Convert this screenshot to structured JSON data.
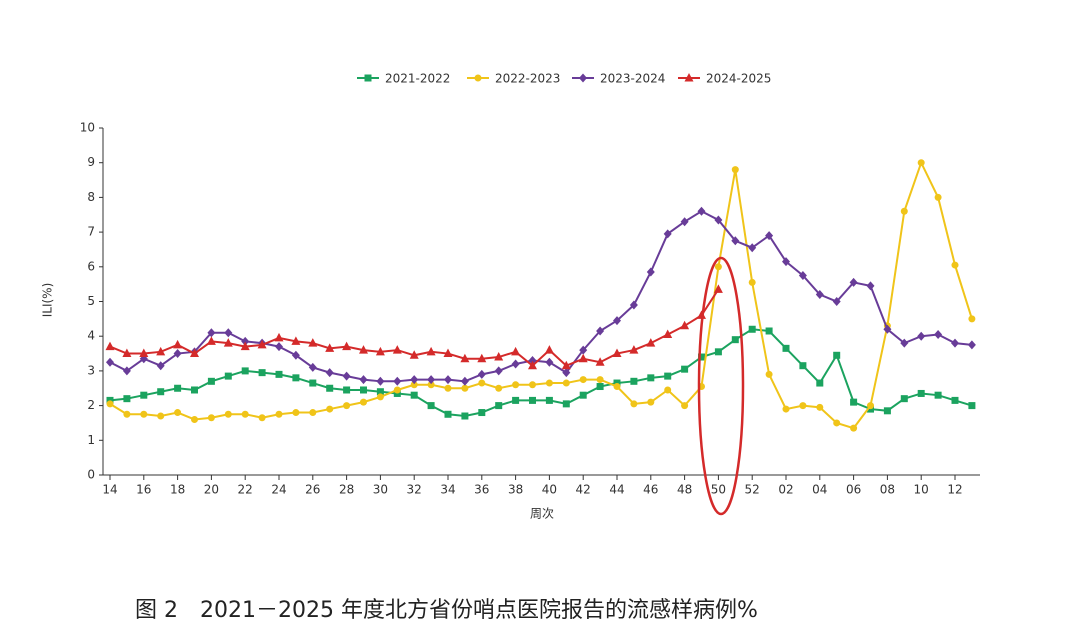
{
  "chart_data": {
    "type": "line",
    "ylabel": "ILI(%)",
    "xlabel": "周次",
    "caption": "图 2　2021－2025 年度北方省份哨点医院报告的流感样病例%",
    "categories": [
      "14",
      null,
      "16",
      null,
      "18",
      null,
      "20",
      null,
      "22",
      null,
      "24",
      null,
      "26",
      null,
      "28",
      null,
      "30",
      null,
      "32",
      null,
      "34",
      null,
      "36",
      null,
      "38",
      null,
      "40",
      null,
      "42",
      null,
      "44",
      null,
      "46",
      null,
      "48",
      null,
      "50",
      null,
      "52",
      null,
      "02",
      null,
      "04",
      null,
      "06",
      null,
      "08",
      null,
      "10",
      null,
      "12",
      null
    ],
    "ylim": [
      0,
      10
    ],
    "yticks": [
      0,
      1,
      2,
      3,
      4,
      5,
      6,
      7,
      8,
      9,
      10
    ],
    "series": [
      {
        "name": "2021-2022",
        "color": "#1ba35f",
        "marker": "square",
        "values": [
          2.15,
          2.2,
          2.3,
          2.4,
          2.5,
          2.45,
          2.7,
          2.85,
          3.0,
          2.95,
          2.9,
          2.8,
          2.65,
          2.5,
          2.45,
          2.45,
          2.4,
          2.35,
          2.3,
          2.0,
          1.75,
          1.7,
          1.8,
          2.0,
          2.15,
          2.15,
          2.15,
          2.05,
          2.3,
          2.55,
          2.65,
          2.7,
          2.8,
          2.85,
          3.05,
          3.4,
          3.55,
          3.9,
          4.2,
          4.15,
          3.65,
          3.15,
          2.65,
          3.45,
          2.1,
          1.9,
          1.85,
          2.2,
          2.35,
          2.3,
          2.15,
          2.0
        ]
      },
      {
        "name": "2022-2023",
        "color": "#f0c419",
        "marker": "circle",
        "values": [
          2.05,
          1.75,
          1.75,
          1.7,
          1.8,
          1.6,
          1.65,
          1.75,
          1.75,
          1.65,
          1.75,
          1.8,
          1.8,
          1.9,
          2.0,
          2.1,
          2.25,
          2.45,
          2.6,
          2.6,
          2.5,
          2.5,
          2.65,
          2.5,
          2.6,
          2.6,
          2.65,
          2.65,
          2.75,
          2.75,
          2.55,
          2.05,
          2.1,
          2.45,
          2.0,
          2.55,
          6.0,
          8.8,
          5.55,
          2.9,
          1.9,
          2.0,
          1.95,
          1.5,
          1.35,
          2.0,
          4.3,
          7.6,
          9.0,
          8.0,
          6.05,
          4.5
        ]
      },
      {
        "name": "2023-2024",
        "color": "#683c98",
        "marker": "diamond",
        "values": [
          3.25,
          3.0,
          3.35,
          3.15,
          3.5,
          3.55,
          4.1,
          4.1,
          3.85,
          3.8,
          3.7,
          3.45,
          3.1,
          2.95,
          2.85,
          2.75,
          2.7,
          2.7,
          2.75,
          2.75,
          2.75,
          2.7,
          2.9,
          3.0,
          3.2,
          3.3,
          3.25,
          2.95,
          3.6,
          4.15,
          4.45,
          4.9,
          5.85,
          6.95,
          7.3,
          7.6,
          7.35,
          6.75,
          6.55,
          6.9,
          6.15,
          5.75,
          5.2,
          5.0,
          5.55,
          5.45,
          4.2,
          3.8,
          4.0,
          4.05,
          3.8,
          3.75
        ]
      },
      {
        "name": "2024-2025",
        "color": "#d42a2a",
        "marker": "triangle",
        "values": [
          3.7,
          3.5,
          3.5,
          3.55,
          3.75,
          3.5,
          3.85,
          3.8,
          3.7,
          3.75,
          3.95,
          3.85,
          3.8,
          3.65,
          3.7,
          3.6,
          3.55,
          3.6,
          3.45,
          3.55,
          3.5,
          3.35,
          3.35,
          3.4,
          3.55,
          3.15,
          3.6,
          3.15,
          3.35,
          3.25,
          3.5,
          3.6,
          3.8,
          4.05,
          4.3,
          4.6,
          5.35,
          null,
          null,
          null,
          null,
          null,
          null,
          null,
          null,
          null,
          null,
          null,
          null,
          null,
          null,
          null
        ]
      }
    ]
  }
}
